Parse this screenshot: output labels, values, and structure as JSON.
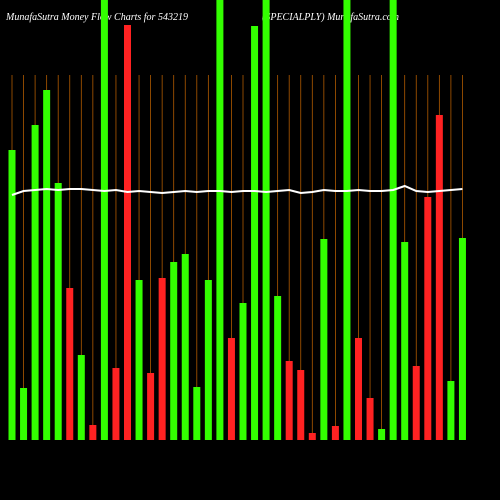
{
  "chart_data": {
    "type": "bar",
    "title": "MunafaSutra  Money Flow  Charts for 543219",
    "subtitle": "(SPECIALPLY) MunafaSutra.com",
    "categories": [
      null,
      null,
      null,
      null,
      null,
      null,
      null,
      null,
      null,
      null,
      null,
      null,
      null,
      null,
      null,
      null,
      null,
      null,
      null,
      null,
      null,
      null,
      null,
      null,
      null,
      null,
      null,
      null,
      null,
      null,
      null,
      null,
      null,
      null,
      null,
      null,
      null,
      null,
      null,
      null
    ],
    "ylim": [
      0,
      440
    ],
    "series": [
      {
        "type": "bar",
        "values": [
          290,
          52,
          315,
          350,
          257,
          152,
          85,
          15,
          440,
          72,
          415,
          160,
          67,
          162,
          178,
          186,
          53,
          160,
          440,
          102,
          137,
          414,
          440,
          144,
          79,
          70,
          7,
          201,
          14,
          440,
          102,
          42,
          11,
          440,
          198,
          74,
          243,
          325,
          59,
          202
        ],
        "colors": [
          "#33ff00",
          "#33ff00",
          "#33ff00",
          "#33ff00",
          "#33ff00",
          "#ff2222",
          "#33ff00",
          "#ff2222",
          "#33ff00",
          "#ff2222",
          "#ff2222",
          "#33ff00",
          "#ff2222",
          "#ff2222",
          "#33ff00",
          "#33ff00",
          "#33ff00",
          "#33ff00",
          "#33ff00",
          "#ff2222",
          "#33ff00",
          "#33ff00",
          "#33ff00",
          "#33ff00",
          "#ff2222",
          "#ff2222",
          "#ff2222",
          "#33ff00",
          "#ff2222",
          "#33ff00",
          "#ff2222",
          "#ff2222",
          "#33ff00",
          "#33ff00",
          "#33ff00",
          "#ff2222",
          "#ff2222",
          "#ff2222",
          "#33ff00",
          "#33ff00"
        ]
      },
      {
        "type": "line",
        "color": "#ffffff",
        "values": [
          245,
          249,
          250,
          251,
          250,
          251,
          251,
          250,
          249,
          250,
          248,
          249,
          248,
          247,
          248,
          249,
          248,
          249,
          249,
          248,
          249,
          249,
          248,
          249,
          250,
          247,
          248,
          250,
          249,
          249,
          250,
          249,
          249,
          250,
          254,
          249,
          248,
          249,
          250,
          251
        ]
      }
    ]
  }
}
